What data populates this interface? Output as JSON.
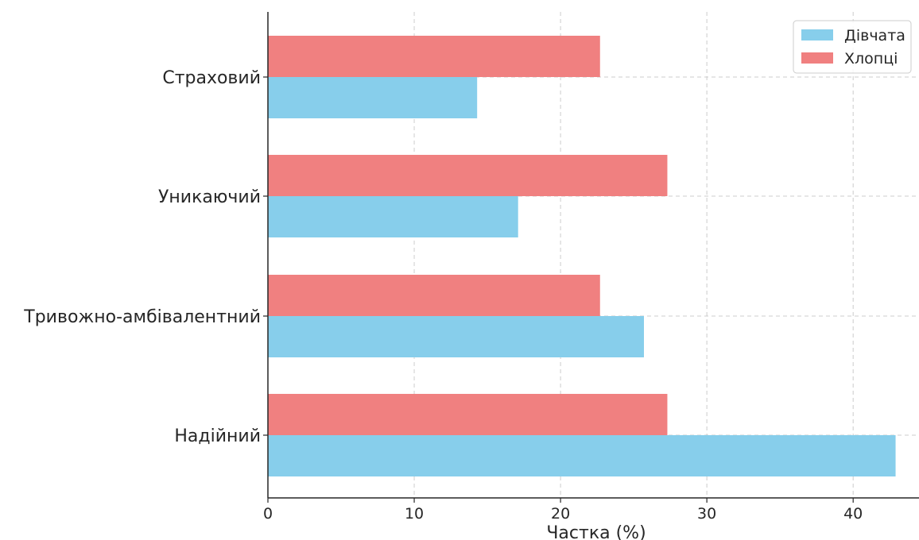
{
  "chart_data": {
    "type": "bar",
    "orientation": "horizontal",
    "categories": [
      "Надійний",
      "Тривожно-амбівалентний",
      "Уникаючий",
      "Страховий"
    ],
    "series": [
      {
        "name": "Дівчата",
        "color": "#87ceeb",
        "values": [
          42.9,
          25.7,
          17.1,
          14.3
        ]
      },
      {
        "name": "Хлопці",
        "color": "#f08080",
        "values": [
          27.3,
          22.7,
          27.3,
          22.7
        ]
      }
    ],
    "title": "",
    "xlabel": "Частка (%)",
    "ylabel": "",
    "xlim": [
      0,
      44.5
    ],
    "xticks": [
      "0",
      "10",
      "20",
      "30",
      "40"
    ],
    "grid": true,
    "legend_position": "top-right"
  }
}
